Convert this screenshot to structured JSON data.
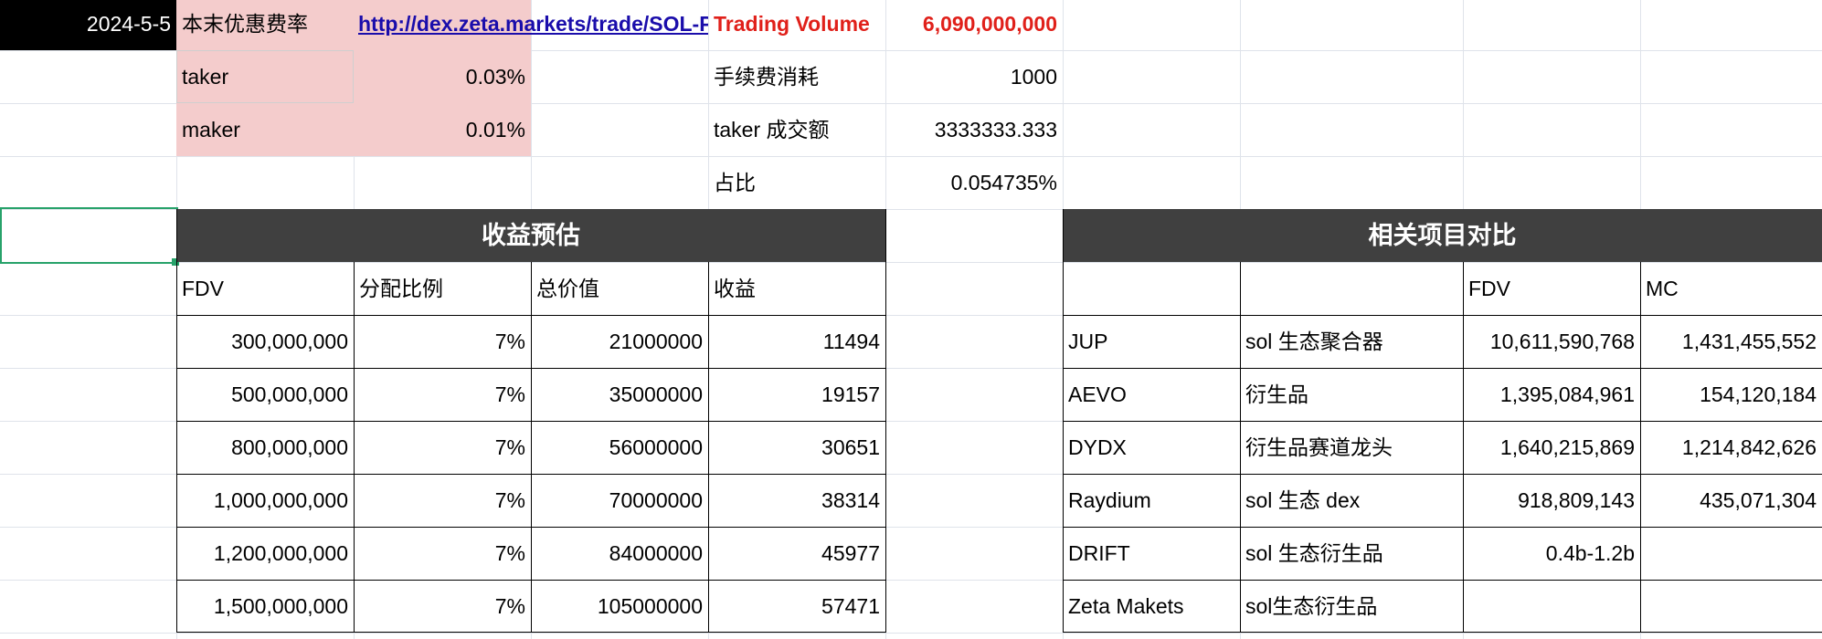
{
  "top": {
    "date": "2024-5-5",
    "fee_title": "本末优惠费率",
    "url": "http://dex.zeta.markets/trade/SOL-PERP",
    "trading_volume_label": "Trading Volume",
    "trading_volume_value": "6,090,000,000",
    "taker_label": "taker",
    "taker_rate": "0.03%",
    "maker_label": "maker",
    "maker_rate": "0.01%",
    "fee_consumption_label": "手续费消耗",
    "fee_consumption_value": "1000",
    "taker_turnover_label": "taker 成交额",
    "taker_turnover_value": "3333333.333",
    "share_label": "占比",
    "share_value": "0.054735%"
  },
  "estimate": {
    "title": "收益预估",
    "headers": [
      "FDV",
      "分配比例",
      "总价值",
      "收益"
    ],
    "rows": [
      [
        "300,000,000",
        "7%",
        "21000000",
        "11494"
      ],
      [
        "500,000,000",
        "7%",
        "35000000",
        "19157"
      ],
      [
        "800,000,000",
        "7%",
        "56000000",
        "30651"
      ],
      [
        "1,000,000,000",
        "7%",
        "70000000",
        "38314"
      ],
      [
        "1,200,000,000",
        "7%",
        "84000000",
        "45977"
      ],
      [
        "1,500,000,000",
        "7%",
        "105000000",
        "57471"
      ]
    ]
  },
  "compare": {
    "title": "相关项目对比",
    "headers": [
      "",
      "",
      "FDV",
      "MC"
    ],
    "rows": [
      [
        "JUP",
        "sol 生态聚合器",
        "10,611,590,768",
        "1,431,455,552"
      ],
      [
        "AEVO",
        "衍生品",
        "1,395,084,961",
        "154,120,184"
      ],
      [
        "DYDX",
        "衍生品赛道龙头",
        "1,640,215,869",
        "1,214,842,626"
      ],
      [
        "Raydium",
        "sol 生态 dex",
        "918,809,143",
        "435,071,304"
      ],
      [
        "DRIFT",
        "sol 生态衍生品",
        "0.4b-1.2b",
        ""
      ],
      [
        "Zeta Makets",
        "sol生态衍生品",
        "",
        ""
      ]
    ]
  },
  "colors": {
    "header_bg": "#404040",
    "fee_bg": "#f4cccc",
    "red_text": "#e0201a",
    "link": "#1a0dab",
    "selection": "#27a26a"
  }
}
